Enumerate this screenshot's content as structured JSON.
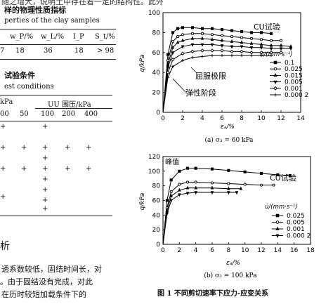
{
  "page": {
    "top_fragment": "随之增大，说明土中存在着一定的结构性。此外，在高围压",
    "table1": {
      "title_cn": "样的物理性质指标",
      "title_en": "perties of the clay samples",
      "headers": [
        "w_P/%",
        "w_L/%",
        "I_P",
        "S_t/%"
      ],
      "row": [
        "7",
        "18",
        "36",
        "18",
        "> 98"
      ]
    },
    "table2": {
      "title_cn": "试验条件",
      "title_en": "est conditions",
      "group_left": "kPa",
      "group_right": "UU 围压/kPa",
      "headers": [
        "00",
        "50",
        "100",
        "200",
        "400"
      ],
      "plus": "+"
    },
    "section_title": "析",
    "body_lines": [
      "透系数较低，固结时间长，对",
      "。由于固结没有完成，对此",
      "在历时较短加载条件下的"
    ],
    "figure_caption": "图 1    不同剪切速率下应力-应变关系"
  },
  "chart_data": [
    {
      "type": "line",
      "subcaption": "(a)  σ₃ = 60 kPa",
      "xlabel": "εₐ/%",
      "ylabel": "q/kPa",
      "xlim": [
        0,
        14
      ],
      "ylim": [
        0,
        100
      ],
      "xticks": [
        0,
        2,
        4,
        6,
        8,
        10,
        12,
        14
      ],
      "yticks": [
        0,
        20,
        40,
        60,
        80,
        100
      ],
      "grid": false,
      "legend_title": "u̇/(mm·s⁻¹)",
      "legend_position": "right",
      "annotations": [
        "CU试验",
        "屈服极限",
        "弹性阶段"
      ],
      "series": [
        {
          "name": "0.1",
          "marker": "square",
          "points": [
            [
              0,
              0
            ],
            [
              0.5,
              58
            ],
            [
              1,
              80
            ],
            [
              1.5,
              84
            ],
            [
              2,
              85
            ],
            [
              3,
              85
            ],
            [
              4,
              84
            ],
            [
              5,
              84
            ],
            [
              6,
              83
            ],
            [
              7,
              82
            ],
            [
              8,
              81
            ],
            [
              9,
              80
            ],
            [
              10,
              80
            ],
            [
              11,
              79
            ]
          ]
        },
        {
          "name": "0.025",
          "marker": "circle",
          "points": [
            [
              0,
              0
            ],
            [
              0.5,
              52
            ],
            [
              1,
              71
            ],
            [
              1.5,
              76
            ],
            [
              2,
              78
            ],
            [
              3,
              79
            ],
            [
              4,
              79
            ],
            [
              5,
              78
            ],
            [
              6,
              77
            ],
            [
              7,
              76
            ],
            [
              8,
              75
            ],
            [
              9,
              74
            ],
            [
              10,
              73
            ],
            [
              11,
              72
            ],
            [
              12,
              72
            ]
          ]
        },
        {
          "name": "0.015",
          "marker": "triangle",
          "points": [
            [
              0,
              0
            ],
            [
              0.5,
              48
            ],
            [
              1,
              65
            ],
            [
              1.5,
              70
            ],
            [
              2,
              72
            ],
            [
              3,
              74
            ],
            [
              4,
              74
            ],
            [
              5,
              73
            ],
            [
              6,
              72
            ],
            [
              7,
              71
            ],
            [
              8,
              70
            ],
            [
              9,
              69
            ],
            [
              10,
              68
            ],
            [
              11,
              67
            ],
            [
              12,
              67
            ],
            [
              13,
              66
            ]
          ]
        },
        {
          "name": "0.005",
          "marker": "triangle-down",
          "points": [
            [
              0,
              0
            ],
            [
              0.5,
              45
            ],
            [
              1,
              60
            ],
            [
              2,
              66
            ],
            [
              3,
              68
            ],
            [
              4,
              68
            ],
            [
              5,
              68
            ],
            [
              6,
              67
            ],
            [
              7,
              66
            ],
            [
              8,
              66
            ],
            [
              9,
              65
            ],
            [
              10,
              65
            ],
            [
              11,
              64
            ],
            [
              12,
              64
            ],
            [
              13,
              64
            ]
          ]
        },
        {
          "name": "0.001",
          "marker": "diamond",
          "points": [
            [
              0,
              0
            ],
            [
              0.5,
              40
            ],
            [
              1,
              53
            ],
            [
              2,
              59
            ],
            [
              3,
              61
            ],
            [
              4,
              62
            ],
            [
              5,
              62
            ],
            [
              6,
              62
            ],
            [
              7,
              61
            ],
            [
              8,
              61
            ],
            [
              9,
              60
            ],
            [
              10,
              60
            ],
            [
              11,
              60
            ],
            [
              12,
              60
            ]
          ]
        },
        {
          "name": "0.000 2",
          "marker": "plus",
          "points": [
            [
              0,
              0
            ],
            [
              0.5,
              35
            ],
            [
              1,
              46
            ],
            [
              2,
              52
            ],
            [
              3,
              55
            ],
            [
              4,
              56
            ],
            [
              5,
              57
            ],
            [
              6,
              57
            ],
            [
              7,
              57
            ],
            [
              8,
              57
            ],
            [
              9,
              57
            ],
            [
              10,
              57
            ],
            [
              11,
              57
            ]
          ]
        }
      ]
    },
    {
      "type": "line",
      "subcaption": "(b)  σ₃ = 100 kPa",
      "xlabel": "εₐ/%",
      "ylabel": "q/kPa",
      "xlim": [
        0,
        18
      ],
      "ylim": [
        0,
        120
      ],
      "xticks": [
        0,
        2,
        4,
        6,
        8,
        10,
        12,
        14,
        16,
        18
      ],
      "yticks": [
        0,
        20,
        40,
        60,
        80,
        100,
        120
      ],
      "grid": false,
      "legend_title": "u̇/(mm·s⁻¹)",
      "legend_position": "right",
      "annotations": [
        "峰值",
        "CU试验"
      ],
      "series": [
        {
          "name": "0.025",
          "marker": "square",
          "points": [
            [
              0,
              0
            ],
            [
              0.5,
              60
            ],
            [
              1,
              88
            ],
            [
              2,
              100
            ],
            [
              3,
              104
            ],
            [
              4,
              104
            ],
            [
              6,
              103
            ],
            [
              8,
              101
            ],
            [
              10,
              99
            ],
            [
              12,
              97
            ],
            [
              14,
              95
            ],
            [
              15.5,
              94
            ]
          ]
        },
        {
          "name": "0.005",
          "marker": "circle",
          "points": [
            [
              0,
              0
            ],
            [
              0.5,
              50
            ],
            [
              1,
              72
            ],
            [
              2,
              82
            ],
            [
              3,
              85
            ],
            [
              4,
              85
            ],
            [
              6,
              84
            ],
            [
              8,
              83
            ],
            [
              10,
              82
            ],
            [
              12,
              81
            ],
            [
              13.5,
              81
            ]
          ]
        },
        {
          "name": "0.001",
          "marker": "triangle",
          "points": [
            [
              0,
              0
            ],
            [
              0.5,
              46
            ],
            [
              1,
              66
            ],
            [
              2,
              74
            ],
            [
              3,
              77
            ],
            [
              4,
              77
            ],
            [
              6,
              77
            ],
            [
              8,
              76
            ],
            [
              9.5,
              76
            ]
          ]
        },
        {
          "name": "0.000 2",
          "marker": "triangle-down",
          "points": [
            [
              0,
              0
            ],
            [
              0.5,
              42
            ],
            [
              1,
              60
            ],
            [
              2,
              68
            ],
            [
              3,
              70
            ],
            [
              4,
              71
            ],
            [
              6,
              71
            ],
            [
              8,
              71
            ],
            [
              9,
              71
            ]
          ]
        }
      ]
    }
  ]
}
